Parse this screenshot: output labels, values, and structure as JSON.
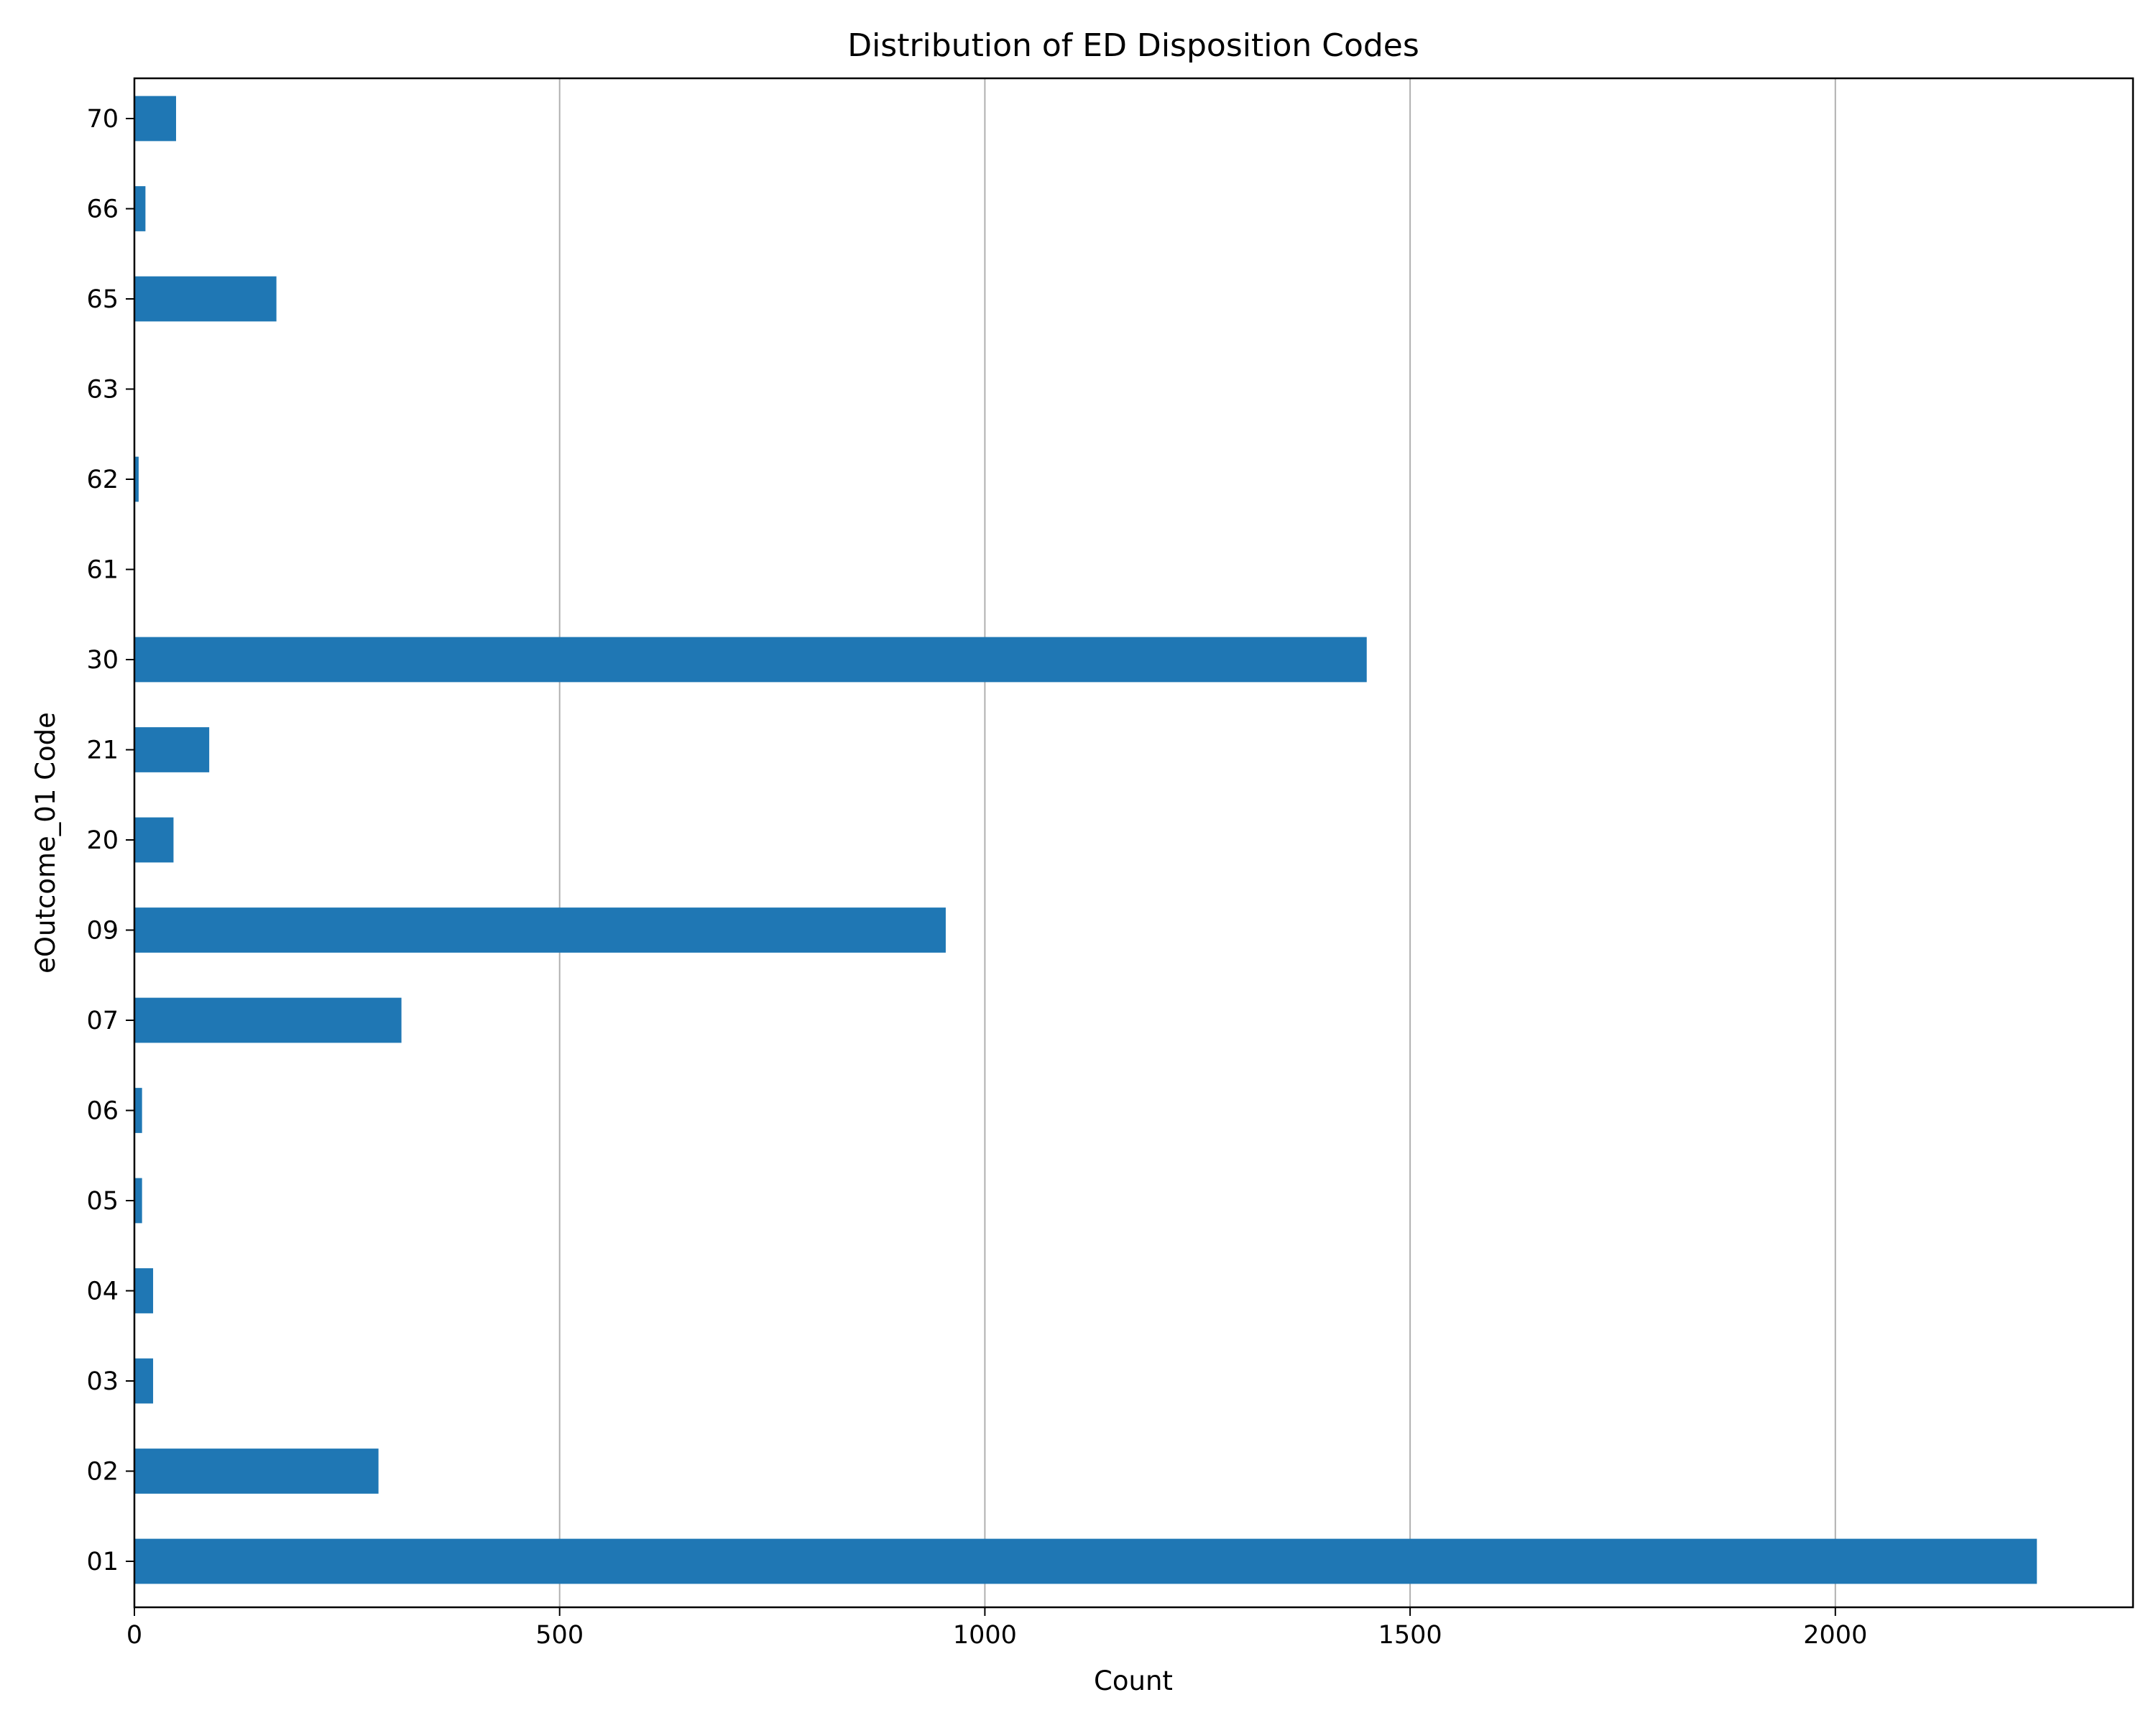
{
  "chart_data": {
    "type": "bar",
    "orientation": "horizontal",
    "title": "Distribution of ED Disposition Codes",
    "xlabel": "Count",
    "ylabel": "eOutcome_01 Code",
    "categories": [
      "01",
      "02",
      "03",
      "04",
      "05",
      "06",
      "07",
      "09",
      "20",
      "21",
      "30",
      "61",
      "62",
      "63",
      "65",
      "66",
      "70"
    ],
    "values": [
      2237,
      287,
      22,
      22,
      9,
      9,
      314,
      954,
      46,
      88,
      1449,
      0,
      5,
      0,
      167,
      13,
      49
    ],
    "xlim": [
      0,
      2350
    ],
    "xticks": [
      0,
      500,
      1000,
      1500,
      2000
    ],
    "xtick_labels": [
      "0",
      "500",
      "1000",
      "1500",
      "2000"
    ],
    "grid": "x",
    "bar_color": "#1f77b4",
    "grid_color": "#b0b0b0"
  }
}
